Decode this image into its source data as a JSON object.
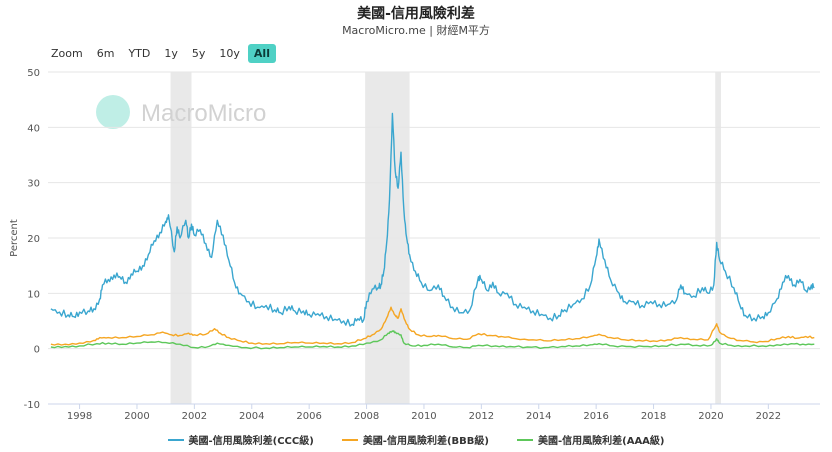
{
  "header": {
    "title": "美國-信用風險利差",
    "subtitle": "MacroMicro.me | 財經M平方"
  },
  "zoom": {
    "label": "Zoom",
    "buttons": [
      "6m",
      "YTD",
      "1y",
      "5y",
      "10y",
      "All"
    ],
    "active": "All"
  },
  "watermark": "MacroMicro",
  "colors": {
    "ccc": "#3aa6cf",
    "bbb": "#f5a623",
    "aaa": "#5dc75a",
    "recession": "#e3e3e3"
  },
  "chart_data": {
    "type": "line",
    "ylabel": "Percent",
    "ylim": [
      -10,
      50
    ],
    "yticks": [
      -10,
      0,
      10,
      20,
      30,
      40,
      50
    ],
    "xlim": [
      1996.9,
      2023.8
    ],
    "xticks": [
      "1998",
      "2000",
      "2002",
      "2004",
      "2006",
      "2008",
      "2010",
      "2012",
      "2014",
      "2016",
      "2018",
      "2020",
      "2022"
    ],
    "recessions": [
      [
        2001.17,
        2001.9
      ],
      [
        2007.95,
        2009.5
      ],
      [
        2020.15,
        2020.35
      ]
    ],
    "legend_position": "bottom",
    "series": [
      {
        "key": "ccc",
        "name": "美國-信用風險利差(CCC級)",
        "points": [
          [
            1997.0,
            7.2
          ],
          [
            1997.3,
            6.6
          ],
          [
            1997.6,
            6.1
          ],
          [
            1997.8,
            5.8
          ],
          [
            1998.0,
            6.6
          ],
          [
            1998.3,
            6.8
          ],
          [
            1998.5,
            7.2
          ],
          [
            1998.7,
            9.0
          ],
          [
            1998.8,
            11.5
          ],
          [
            1999.0,
            12.5
          ],
          [
            1999.2,
            13.3
          ],
          [
            1999.4,
            13.0
          ],
          [
            1999.6,
            12.0
          ],
          [
            1999.8,
            13.5
          ],
          [
            2000.0,
            14.0
          ],
          [
            2000.2,
            15.0
          ],
          [
            2000.4,
            17.0
          ],
          [
            2000.6,
            19.5
          ],
          [
            2000.8,
            21.0
          ],
          [
            2001.0,
            23.0
          ],
          [
            2001.1,
            24.2
          ],
          [
            2001.3,
            17.5
          ],
          [
            2001.4,
            22.0
          ],
          [
            2001.5,
            20.0
          ],
          [
            2001.7,
            23.2
          ],
          [
            2001.8,
            20.0
          ],
          [
            2001.9,
            22.5
          ],
          [
            2002.0,
            20.5
          ],
          [
            2002.2,
            21.5
          ],
          [
            2002.4,
            19.0
          ],
          [
            2002.6,
            16.5
          ],
          [
            2002.8,
            23.2
          ],
          [
            2003.0,
            20.5
          ],
          [
            2003.2,
            16.0
          ],
          [
            2003.4,
            12.0
          ],
          [
            2003.6,
            10.0
          ],
          [
            2003.9,
            8.5
          ],
          [
            2004.2,
            7.5
          ],
          [
            2004.5,
            7.8
          ],
          [
            2004.8,
            7.0
          ],
          [
            2005.0,
            6.5
          ],
          [
            2005.3,
            7.6
          ],
          [
            2005.5,
            6.8
          ],
          [
            2005.8,
            6.8
          ],
          [
            2006.0,
            6.2
          ],
          [
            2006.3,
            6.3
          ],
          [
            2006.6,
            5.8
          ],
          [
            2006.9,
            5.3
          ],
          [
            2007.2,
            5.0
          ],
          [
            2007.5,
            4.4
          ],
          [
            2007.7,
            5.4
          ],
          [
            2007.9,
            5.2
          ],
          [
            2008.0,
            8.5
          ],
          [
            2008.2,
            10.8
          ],
          [
            2008.4,
            11.0
          ],
          [
            2008.5,
            11.5
          ],
          [
            2008.6,
            14.0
          ],
          [
            2008.7,
            19.0
          ],
          [
            2008.8,
            27.0
          ],
          [
            2008.9,
            42.5
          ],
          [
            2009.0,
            32.0
          ],
          [
            2009.1,
            29.0
          ],
          [
            2009.2,
            35.5
          ],
          [
            2009.3,
            25.0
          ],
          [
            2009.4,
            20.0
          ],
          [
            2009.5,
            17.0
          ],
          [
            2009.7,
            14.0
          ],
          [
            2009.9,
            12.0
          ],
          [
            2010.2,
            10.5
          ],
          [
            2010.5,
            11.5
          ],
          [
            2010.7,
            9.5
          ],
          [
            2011.0,
            7.5
          ],
          [
            2011.3,
            6.5
          ],
          [
            2011.6,
            7.0
          ],
          [
            2011.9,
            13.0
          ],
          [
            2012.0,
            12.5
          ],
          [
            2012.2,
            10.5
          ],
          [
            2012.4,
            12.0
          ],
          [
            2012.6,
            10.0
          ],
          [
            2012.9,
            10.0
          ],
          [
            2013.2,
            8.0
          ],
          [
            2013.5,
            7.5
          ],
          [
            2013.8,
            6.8
          ],
          [
            2014.1,
            6.2
          ],
          [
            2014.4,
            5.5
          ],
          [
            2014.7,
            6.0
          ],
          [
            2014.9,
            7.0
          ],
          [
            2015.2,
            8.0
          ],
          [
            2015.5,
            9.0
          ],
          [
            2015.8,
            11.5
          ],
          [
            2016.0,
            16.5
          ],
          [
            2016.1,
            19.8
          ],
          [
            2016.3,
            16.0
          ],
          [
            2016.5,
            12.5
          ],
          [
            2016.8,
            10.0
          ],
          [
            2017.0,
            8.5
          ],
          [
            2017.3,
            8.5
          ],
          [
            2017.6,
            7.8
          ],
          [
            2017.9,
            8.5
          ],
          [
            2018.2,
            8.0
          ],
          [
            2018.5,
            8.0
          ],
          [
            2018.8,
            8.8
          ],
          [
            2018.95,
            11.5
          ],
          [
            2019.1,
            10.0
          ],
          [
            2019.4,
            9.5
          ],
          [
            2019.7,
            11.0
          ],
          [
            2019.9,
            10.0
          ],
          [
            2020.1,
            11.5
          ],
          [
            2020.2,
            19.2
          ],
          [
            2020.3,
            16.0
          ],
          [
            2020.5,
            14.0
          ],
          [
            2020.8,
            11.0
          ],
          [
            2021.0,
            8.0
          ],
          [
            2021.2,
            6.0
          ],
          [
            2021.5,
            5.5
          ],
          [
            2021.8,
            5.8
          ],
          [
            2022.0,
            6.5
          ],
          [
            2022.3,
            9.0
          ],
          [
            2022.5,
            12.0
          ],
          [
            2022.7,
            13.2
          ],
          [
            2022.9,
            11.5
          ],
          [
            2023.1,
            12.5
          ],
          [
            2023.3,
            10.5
          ],
          [
            2023.5,
            11.5
          ],
          [
            2023.6,
            11.0
          ]
        ]
      },
      {
        "key": "bbb",
        "name": "美國-信用風險利差(BBB級)",
        "points": [
          [
            1997.0,
            0.8
          ],
          [
            1997.5,
            0.8
          ],
          [
            1998.0,
            1.0
          ],
          [
            1998.5,
            1.5
          ],
          [
            1998.7,
            2.0
          ],
          [
            1999.0,
            2.0
          ],
          [
            1999.5,
            2.0
          ],
          [
            2000.0,
            2.2
          ],
          [
            2000.5,
            2.5
          ],
          [
            2000.9,
            3.0
          ],
          [
            2001.2,
            2.5
          ],
          [
            2001.5,
            2.4
          ],
          [
            2001.8,
            2.8
          ],
          [
            2002.0,
            2.5
          ],
          [
            2002.4,
            2.6
          ],
          [
            2002.7,
            3.6
          ],
          [
            2002.9,
            2.8
          ],
          [
            2003.2,
            2.0
          ],
          [
            2003.6,
            1.4
          ],
          [
            2004.0,
            1.0
          ],
          [
            2004.5,
            0.9
          ],
          [
            2005.0,
            0.9
          ],
          [
            2005.5,
            1.1
          ],
          [
            2006.0,
            1.0
          ],
          [
            2006.5,
            1.0
          ],
          [
            2007.0,
            0.9
          ],
          [
            2007.5,
            1.1
          ],
          [
            2007.9,
            1.8
          ],
          [
            2008.2,
            2.5
          ],
          [
            2008.5,
            3.5
          ],
          [
            2008.7,
            5.5
          ],
          [
            2008.85,
            7.5
          ],
          [
            2009.0,
            6.0
          ],
          [
            2009.1,
            5.5
          ],
          [
            2009.2,
            7.2
          ],
          [
            2009.35,
            5.0
          ],
          [
            2009.5,
            3.5
          ],
          [
            2009.8,
            2.5
          ],
          [
            2010.2,
            2.2
          ],
          [
            2010.5,
            2.4
          ],
          [
            2011.0,
            1.8
          ],
          [
            2011.5,
            1.7
          ],
          [
            2011.9,
            2.7
          ],
          [
            2012.3,
            2.4
          ],
          [
            2012.7,
            2.2
          ],
          [
            2013.2,
            1.8
          ],
          [
            2013.8,
            1.6
          ],
          [
            2014.3,
            1.4
          ],
          [
            2014.8,
            1.6
          ],
          [
            2015.3,
            1.8
          ],
          [
            2015.8,
            2.2
          ],
          [
            2016.1,
            2.6
          ],
          [
            2016.5,
            2.0
          ],
          [
            2017.0,
            1.6
          ],
          [
            2017.5,
            1.5
          ],
          [
            2018.0,
            1.4
          ],
          [
            2018.5,
            1.6
          ],
          [
            2018.95,
            2.0
          ],
          [
            2019.4,
            1.7
          ],
          [
            2019.9,
            1.6
          ],
          [
            2020.2,
            4.5
          ],
          [
            2020.3,
            3.0
          ],
          [
            2020.6,
            2.0
          ],
          [
            2021.0,
            1.5
          ],
          [
            2021.5,
            1.2
          ],
          [
            2021.9,
            1.3
          ],
          [
            2022.3,
            1.8
          ],
          [
            2022.7,
            2.2
          ],
          [
            2023.0,
            1.9
          ],
          [
            2023.3,
            2.2
          ],
          [
            2023.6,
            2.0
          ]
        ]
      },
      {
        "key": "aaa",
        "name": "美國-信用風險利差(AAA級)",
        "points": [
          [
            1997.0,
            0.3
          ],
          [
            1997.5,
            0.4
          ],
          [
            1998.0,
            0.5
          ],
          [
            1998.6,
            0.9
          ],
          [
            1999.0,
            1.0
          ],
          [
            1999.5,
            0.8
          ],
          [
            2000.0,
            1.0
          ],
          [
            2000.5,
            1.2
          ],
          [
            2001.0,
            1.1
          ],
          [
            2001.5,
            0.8
          ],
          [
            2002.0,
            0.2
          ],
          [
            2002.5,
            0.4
          ],
          [
            2002.8,
            1.0
          ],
          [
            2003.2,
            0.6
          ],
          [
            2003.8,
            0.2
          ],
          [
            2004.5,
            0.1
          ],
          [
            2005.0,
            0.2
          ],
          [
            2005.5,
            0.3
          ],
          [
            2006.0,
            0.3
          ],
          [
            2006.5,
            0.4
          ],
          [
            2007.0,
            0.3
          ],
          [
            2007.5,
            0.5
          ],
          [
            2008.0,
            1.0
          ],
          [
            2008.5,
            1.6
          ],
          [
            2008.75,
            2.8
          ],
          [
            2008.9,
            3.2
          ],
          [
            2009.0,
            3.0
          ],
          [
            2009.2,
            2.5
          ],
          [
            2009.3,
            1.0
          ],
          [
            2009.6,
            0.5
          ],
          [
            2010.0,
            0.6
          ],
          [
            2010.5,
            0.8
          ],
          [
            2011.0,
            0.3
          ],
          [
            2011.5,
            0.2
          ],
          [
            2011.9,
            0.6
          ],
          [
            2012.5,
            0.5
          ],
          [
            2013.0,
            0.4
          ],
          [
            2013.6,
            0.3
          ],
          [
            2014.2,
            0.2
          ],
          [
            2014.8,
            0.4
          ],
          [
            2015.3,
            0.5
          ],
          [
            2015.8,
            0.7
          ],
          [
            2016.1,
            0.9
          ],
          [
            2016.6,
            0.5
          ],
          [
            2017.2,
            0.4
          ],
          [
            2017.8,
            0.4
          ],
          [
            2018.3,
            0.5
          ],
          [
            2018.95,
            0.8
          ],
          [
            2019.5,
            0.6
          ],
          [
            2020.0,
            0.6
          ],
          [
            2020.2,
            1.8
          ],
          [
            2020.3,
            1.0
          ],
          [
            2020.7,
            0.6
          ],
          [
            2021.2,
            0.5
          ],
          [
            2021.8,
            0.5
          ],
          [
            2022.3,
            0.7
          ],
          [
            2022.8,
            0.9
          ],
          [
            2023.2,
            0.8
          ],
          [
            2023.6,
            0.8
          ]
        ]
      }
    ]
  }
}
